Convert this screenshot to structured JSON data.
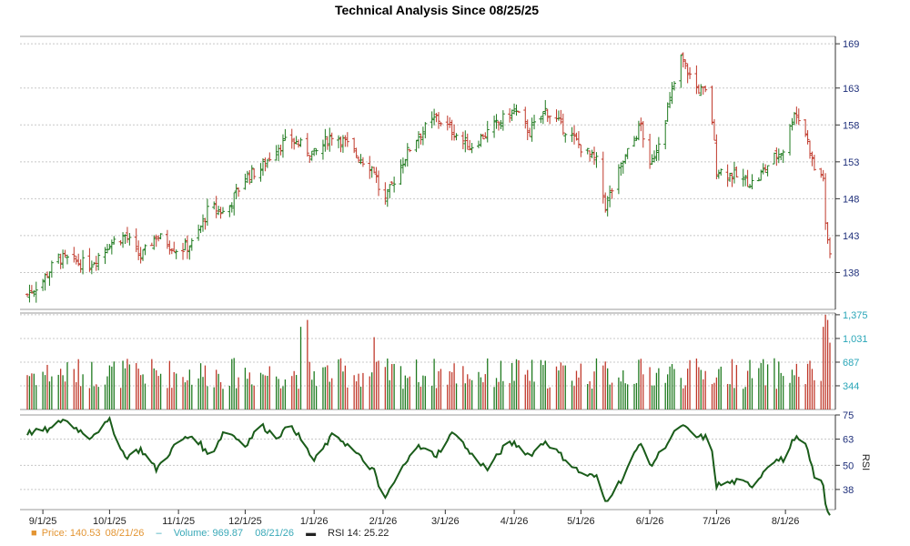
{
  "chart_data": [
    {
      "type": "candlestick",
      "title": "Technical Analysis Since 08/25/25",
      "x_tick_labels": [
        "9/1/25",
        "10/1/25",
        "11/1/25",
        "12/1/25",
        "1/1/26",
        "2/1/26",
        "3/1/26",
        "4/1/26",
        "5/1/26",
        "6/1/26",
        "7/1/26",
        "8/1/26"
      ],
      "y_ticks": [
        138,
        143,
        148,
        153,
        158,
        163,
        169
      ],
      "ylim": [
        133,
        170
      ],
      "date_range": [
        "2025-08-25",
        "2026-08-21"
      ],
      "last_close": 140.53,
      "anchors": [
        [
          "2025-08-25",
          135
        ],
        [
          "2025-09-01",
          137
        ],
        [
          "2025-09-08",
          140
        ],
        [
          "2025-09-22",
          139
        ],
        [
          "2025-10-01",
          142
        ],
        [
          "2025-10-08",
          143
        ],
        [
          "2025-10-15",
          140
        ],
        [
          "2025-10-22",
          143
        ],
        [
          "2025-11-01",
          141
        ],
        [
          "2025-11-08",
          142
        ],
        [
          "2025-11-15",
          147
        ],
        [
          "2025-11-22",
          146
        ],
        [
          "2025-12-01",
          151
        ],
        [
          "2025-12-08",
          152
        ],
        [
          "2025-12-15",
          155
        ],
        [
          "2025-12-22",
          156
        ],
        [
          "2026-01-01",
          154
        ],
        [
          "2026-01-10",
          157
        ],
        [
          "2026-01-20",
          154
        ],
        [
          "2026-01-28",
          152
        ],
        [
          "2026-02-01",
          147
        ],
        [
          "2026-02-08",
          152
        ],
        [
          "2026-02-15",
          156
        ],
        [
          "2026-02-25",
          159
        ],
        [
          "2026-03-05",
          157
        ],
        [
          "2026-03-12",
          155
        ],
        [
          "2026-03-20",
          157
        ],
        [
          "2026-03-28",
          159
        ],
        [
          "2026-04-01",
          160
        ],
        [
          "2026-04-08",
          157
        ],
        [
          "2026-04-15",
          160
        ],
        [
          "2026-04-22",
          158
        ],
        [
          "2026-05-01",
          155
        ],
        [
          "2026-05-08",
          153
        ],
        [
          "2026-05-12",
          147
        ],
        [
          "2026-05-20",
          153
        ],
        [
          "2026-05-28",
          158
        ],
        [
          "2026-06-01",
          152
        ],
        [
          "2026-06-08",
          159
        ],
        [
          "2026-06-15",
          167
        ],
        [
          "2026-06-22",
          163
        ],
        [
          "2026-06-28",
          162
        ],
        [
          "2026-07-01",
          152
        ],
        [
          "2026-07-10",
          151
        ],
        [
          "2026-07-18",
          150
        ],
        [
          "2026-07-25",
          153
        ],
        [
          "2026-08-01",
          155
        ],
        [
          "2026-08-05",
          160
        ],
        [
          "2026-08-10",
          157
        ],
        [
          "2026-08-14",
          152
        ],
        [
          "2026-08-18",
          151
        ],
        [
          "2026-08-19",
          144
        ],
        [
          "2026-08-21",
          140.53
        ]
      ]
    },
    {
      "type": "bar",
      "name": "Volume",
      "y_ticks": [
        344,
        687,
        1031,
        1375
      ],
      "ylim": [
        0,
        1400
      ],
      "last_value": 969.87,
      "spikes": [
        [
          "2025-12-26",
          1200
        ],
        [
          "2025-12-29",
          1300
        ],
        [
          "2026-01-28",
          1050
        ],
        [
          "2026-06-27",
          1375
        ],
        [
          "2026-08-18",
          1200
        ],
        [
          "2026-08-19",
          1375
        ],
        [
          "2026-08-20",
          1300
        ]
      ]
    },
    {
      "type": "line",
      "name": "RSI 14",
      "ylabel": "RSI",
      "y_ticks": [
        38,
        50,
        63,
        75
      ],
      "ylim": [
        28,
        75
      ],
      "last_value": 25.22,
      "anchors": [
        [
          "2025-08-25",
          66
        ],
        [
          "2025-09-05",
          68
        ],
        [
          "2025-09-10",
          73
        ],
        [
          "2025-09-22",
          64
        ],
        [
          "2025-10-01",
          72
        ],
        [
          "2025-10-08",
          54
        ],
        [
          "2025-10-15",
          58
        ],
        [
          "2025-10-22",
          48
        ],
        [
          "2025-11-01",
          62
        ],
        [
          "2025-11-08",
          65
        ],
        [
          "2025-11-15",
          54
        ],
        [
          "2025-11-22",
          68
        ],
        [
          "2025-12-01",
          60
        ],
        [
          "2025-12-08",
          70
        ],
        [
          "2025-12-15",
          64
        ],
        [
          "2025-12-22",
          70
        ],
        [
          "2026-01-01",
          52
        ],
        [
          "2026-01-10",
          66
        ],
        [
          "2026-01-18",
          58
        ],
        [
          "2026-01-28",
          47
        ],
        [
          "2026-02-01",
          32
        ],
        [
          "2026-02-08",
          45
        ],
        [
          "2026-02-15",
          60
        ],
        [
          "2026-02-25",
          55
        ],
        [
          "2026-03-05",
          67
        ],
        [
          "2026-03-12",
          56
        ],
        [
          "2026-03-20",
          48
        ],
        [
          "2026-03-28",
          60
        ],
        [
          "2026-04-01",
          61
        ],
        [
          "2026-04-08",
          55
        ],
        [
          "2026-04-15",
          62
        ],
        [
          "2026-04-22",
          55
        ],
        [
          "2026-05-01",
          46
        ],
        [
          "2026-05-08",
          44
        ],
        [
          "2026-05-12",
          32
        ],
        [
          "2026-05-20",
          44
        ],
        [
          "2026-05-28",
          62
        ],
        [
          "2026-06-01",
          49
        ],
        [
          "2026-06-08",
          60
        ],
        [
          "2026-06-15",
          70
        ],
        [
          "2026-06-22",
          64
        ],
        [
          "2026-06-28",
          64
        ],
        [
          "2026-07-01",
          40
        ],
        [
          "2026-07-10",
          42
        ],
        [
          "2026-07-18",
          40
        ],
        [
          "2026-07-25",
          52
        ],
        [
          "2026-08-01",
          53
        ],
        [
          "2026-08-05",
          64
        ],
        [
          "2026-08-10",
          60
        ],
        [
          "2026-08-14",
          45
        ],
        [
          "2026-08-18",
          40
        ],
        [
          "2026-08-19",
          30
        ],
        [
          "2026-08-21",
          25.22
        ]
      ]
    }
  ],
  "legend": {
    "price_label": "Price: 140.53",
    "price_date": "08/21/26",
    "volume_label": "Volume: 969.87",
    "volume_date": "08/21/26",
    "rsi_label": "RSI 14: 25.22"
  },
  "colors": {
    "up": "#1f7a1f",
    "down": "#c0392b",
    "rsi": "#1a5c1a",
    "axis": "#1e2f7a",
    "vol_axis": "#2aa6b8",
    "grid": "#c8c8c8"
  }
}
